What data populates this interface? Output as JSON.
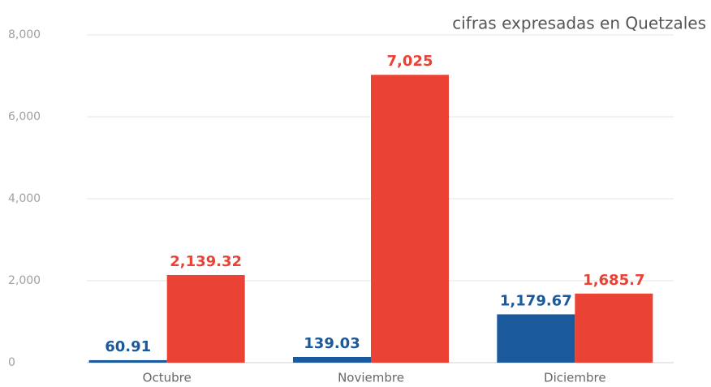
{
  "chart_data": {
    "type": "bar",
    "subtitle": "cifras expresadas en Quetzales",
    "categories": [
      "Octubre",
      "Noviembre",
      "Diciembre"
    ],
    "series": [
      {
        "color": "#1a5a9c",
        "values": [
          60.91,
          139.03,
          1179.67
        ],
        "value_labels": [
          "60.91",
          "139.03",
          "1,179.67"
        ]
      },
      {
        "color": "#ea4234",
        "values": [
          2139.32,
          7025,
          1685.7
        ],
        "value_labels": [
          "2,139.32",
          "7,025",
          "1,685.7"
        ]
      }
    ],
    "ylim": [
      0,
      8000
    ],
    "yticks": [
      0,
      {
        "value": 2000,
        "label": "2,000"
      },
      {
        "value": 4000,
        "label": "4,000"
      },
      {
        "value": 6000,
        "label": "6,000"
      },
      {
        "value": 8000,
        "label": "8,000"
      }
    ],
    "grid": true
  }
}
